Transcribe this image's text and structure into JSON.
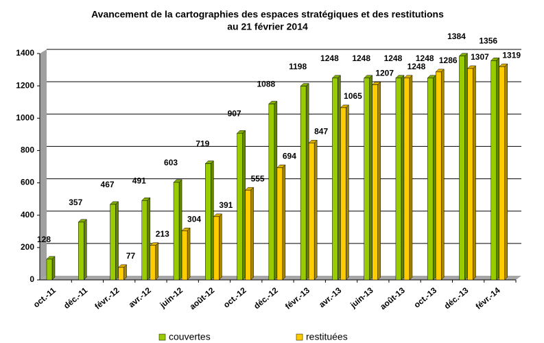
{
  "chart_data": {
    "type": "bar3d",
    "title": "Avancement de la cartographies des espaces stratégiques et des restitutions",
    "subtitle": "au 21 février 2014",
    "categories": [
      "oct.-11",
      "déc.-11",
      "févr.-12",
      "avr.-12",
      "juin-12",
      "août-12",
      "oct.-12",
      "déc.-12",
      "févr.-13",
      "avr.-13",
      "juin-13",
      "août-13",
      "oct.-13",
      "déc.-13",
      "févr.-14"
    ],
    "series": [
      {
        "name": "couvertes",
        "color": "#99cc00",
        "values": [
          128,
          357,
          467,
          491,
          603,
          719,
          907,
          1088,
          1198,
          1248,
          1248,
          1248,
          1248,
          1384,
          1356
        ]
      },
      {
        "name": "restituées",
        "color": "#ffcc00",
        "values": [
          null,
          null,
          77,
          213,
          304,
          391,
          555,
          694,
          847,
          1065,
          1207,
          1248,
          1286,
          1307,
          1319
        ]
      }
    ],
    "ylim": [
      0,
      1400
    ],
    "yticks": [
      0,
      200,
      400,
      600,
      800,
      1000,
      1200,
      1400
    ],
    "grid": true,
    "legend": "bottom"
  }
}
